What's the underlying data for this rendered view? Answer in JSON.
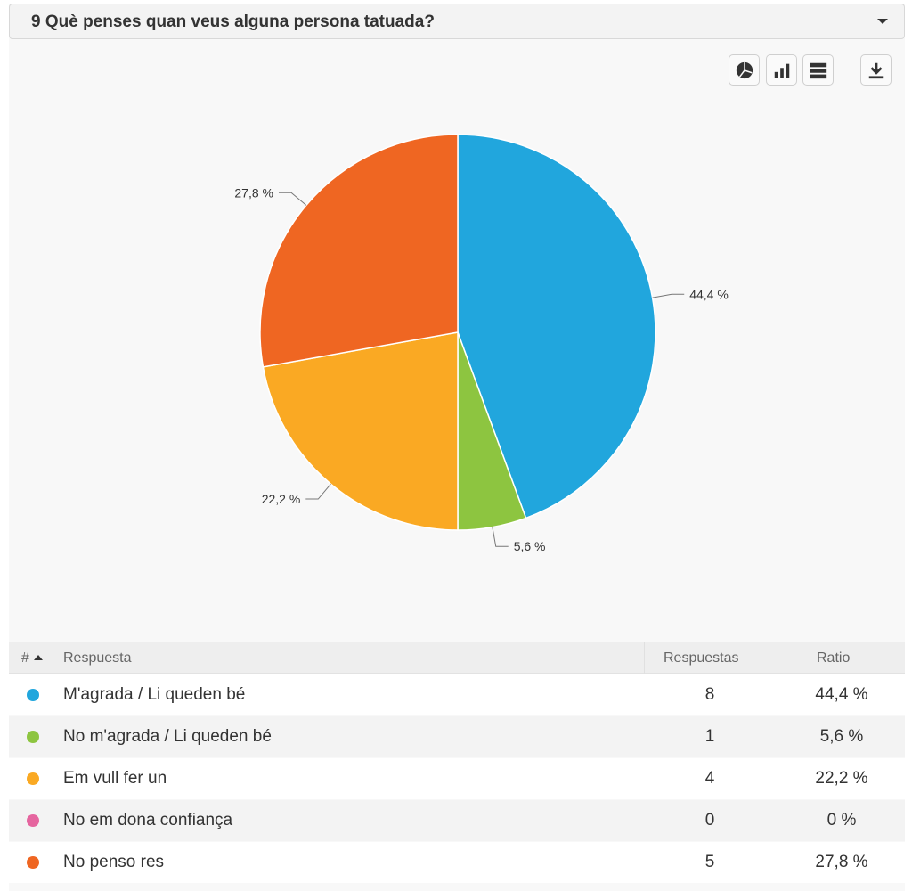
{
  "question": {
    "title": "9 Què penses quan veus alguna persona tatuada?"
  },
  "toolbar": {
    "buttons": [
      "pie-chart-icon",
      "bar-chart-icon",
      "table-view-icon",
      "download-icon"
    ]
  },
  "chart_data": {
    "type": "pie",
    "categories": [
      "M'agrada / Li queden bé",
      "No m'agrada / Li queden bé",
      "Em vull fer un",
      "No em dona confiança",
      "No penso res"
    ],
    "values": [
      44.4,
      5.6,
      22.2,
      0,
      27.8
    ],
    "labels": [
      "44,4 %",
      "5,6 %",
      "22,2 %",
      "",
      "27,8 %"
    ],
    "colors": [
      "#21a6dd",
      "#8dc540",
      "#faa923",
      "#e5659f",
      "#ef6622"
    ],
    "start": "12 o'clock",
    "direction": "clockwise"
  },
  "table": {
    "headers": {
      "hash": "#",
      "response": "Respuesta",
      "count": "Respuestas",
      "ratio": "Ratio"
    },
    "rows": [
      {
        "label": "M'agrada / Li queden bé",
        "count": "8",
        "ratio": "44,4 %",
        "color": "#21a6dd"
      },
      {
        "label": "No m'agrada / Li queden bé",
        "count": "1",
        "ratio": "5,6 %",
        "color": "#8dc540"
      },
      {
        "label": "Em vull fer un",
        "count": "4",
        "ratio": "22,2 %",
        "color": "#faa923"
      },
      {
        "label": "No em dona confiança",
        "count": "0",
        "ratio": "0 %",
        "color": "#e5659f"
      },
      {
        "label": "No penso res",
        "count": "5",
        "ratio": "27,8 %",
        "color": "#ef6622"
      }
    ]
  }
}
